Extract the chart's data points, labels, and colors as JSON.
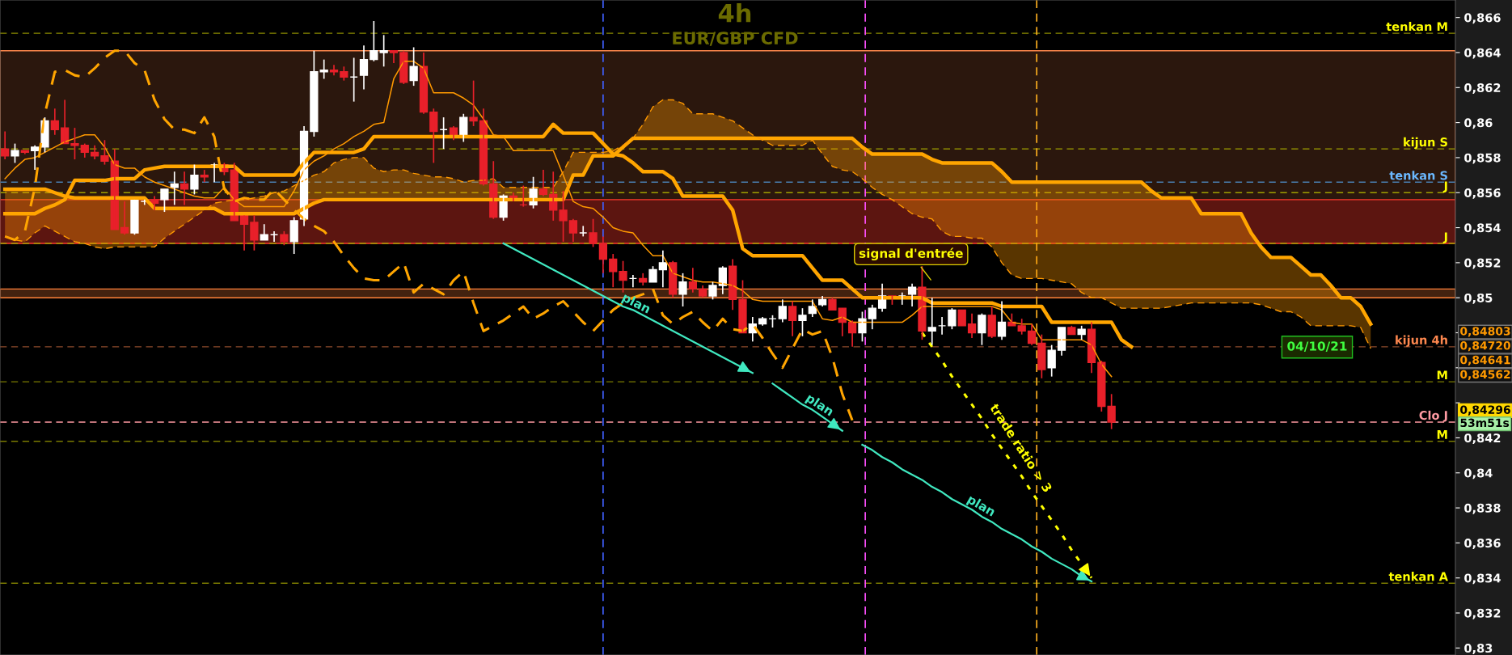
{
  "chart_data": {
    "type": "candlestick",
    "title": "4h",
    "subtitle": "EUR/GBP CFD",
    "categories": [
      null,
      null,
      null,
      null,
      null,
      null,
      null,
      null,
      null,
      null,
      null,
      null,
      null,
      null,
      null,
      null,
      null,
      null,
      null,
      null,
      null,
      null,
      null,
      null,
      null,
      null,
      null,
      null,
      null,
      null,
      null,
      null,
      null,
      null,
      null,
      null,
      null,
      null,
      null,
      null,
      null,
      null,
      null,
      null,
      null,
      null,
      null,
      null,
      null,
      null,
      null,
      null,
      null,
      null,
      null,
      null,
      null,
      null,
      null,
      null,
      null,
      null,
      null,
      null,
      null,
      null,
      null,
      null,
      null,
      null,
      null,
      null,
      null,
      null,
      null,
      null,
      null,
      null,
      null,
      null,
      null,
      null,
      null,
      null,
      null,
      null,
      null,
      null,
      null,
      null,
      null,
      null,
      null,
      null,
      null,
      null,
      null,
      null,
      null,
      null,
      null,
      null,
      null,
      null,
      null,
      null,
      null,
      null,
      null,
      null,
      null,
      null,
      null,
      null,
      null,
      null,
      null,
      null,
      null,
      null,
      null,
      null,
      null,
      null,
      null,
      null,
      null,
      null,
      null,
      null,
      null,
      null,
      null,
      null,
      null,
      null,
      null,
      null,
      null,
      null,
      null,
      null,
      null,
      null,
      null,
      null
    ],
    "ohlc": [
      [
        0.8585,
        0.8595,
        0.8579,
        0.8581
      ],
      [
        0.8581,
        0.8588,
        0.8577,
        0.8584
      ],
      [
        0.8584,
        0.8584,
        0.8582,
        0.8583
      ],
      [
        0.8584,
        0.8587,
        0.8573,
        0.8586
      ],
      [
        0.8586,
        0.8603,
        0.8583,
        0.8601
      ],
      [
        0.8601,
        0.8608,
        0.8593,
        0.8596
      ],
      [
        0.8597,
        0.8613,
        0.8588,
        0.8588
      ],
      [
        0.8588,
        0.8597,
        0.8579,
        0.8587
      ],
      [
        0.8587,
        0.8588,
        0.858,
        0.8583
      ],
      [
        0.8583,
        0.8587,
        0.8579,
        0.8581
      ],
      [
        0.8581,
        0.859,
        0.8576,
        0.8578
      ],
      [
        0.8578,
        0.8585,
        0.8539,
        0.8539
      ],
      [
        0.854,
        0.8555,
        0.8536,
        0.8537
      ],
      [
        0.8537,
        0.8556,
        0.8536,
        0.8556
      ],
      [
        0.8555,
        0.8556,
        0.8553,
        0.8555
      ],
      [
        0.8556,
        0.8558,
        0.855,
        0.8554
      ],
      [
        0.8556,
        0.8562,
        0.8549,
        0.8562
      ],
      [
        0.8563,
        0.8572,
        0.8553,
        0.8565
      ],
      [
        0.8565,
        0.8572,
        0.8553,
        0.8562
      ],
      [
        0.8562,
        0.8576,
        0.8559,
        0.857
      ],
      [
        0.857,
        0.8573,
        0.8566,
        0.8569
      ],
      [
        0.8576,
        0.8577,
        0.8566,
        0.8576
      ],
      [
        0.8576,
        0.8577,
        0.857,
        0.8572
      ],
      [
        0.8573,
        0.8577,
        0.8544,
        0.8544
      ],
      [
        0.8547,
        0.8547,
        0.8527,
        0.8542
      ],
      [
        0.8543,
        0.8547,
        0.8527,
        0.8533
      ],
      [
        0.8533,
        0.8542,
        0.8533,
        0.8536
      ],
      [
        0.8536,
        0.8538,
        0.8532,
        0.8536
      ],
      [
        0.8536,
        0.8538,
        0.853,
        0.8532
      ],
      [
        0.8532,
        0.8546,
        0.8525,
        0.8544
      ],
      [
        0.8545,
        0.8598,
        0.8541,
        0.8595
      ],
      [
        0.8595,
        0.8641,
        0.8592,
        0.8629
      ],
      [
        0.8629,
        0.8636,
        0.8625,
        0.863
      ],
      [
        0.863,
        0.8633,
        0.8627,
        0.8629
      ],
      [
        0.8629,
        0.8632,
        0.8624,
        0.8626
      ],
      [
        0.8626,
        0.8637,
        0.8612,
        0.8626
      ],
      [
        0.8627,
        0.8644,
        0.8619,
        0.8636
      ],
      [
        0.8636,
        0.8658,
        0.8635,
        0.8641
      ],
      [
        0.864,
        0.865,
        0.8632,
        0.8641
      ],
      [
        0.8641,
        0.8641,
        0.8634,
        0.864
      ],
      [
        0.864,
        0.8641,
        0.8622,
        0.8623
      ],
      [
        0.8624,
        0.8643,
        0.8621,
        0.8632
      ],
      [
        0.8632,
        0.864,
        0.8605,
        0.8606
      ],
      [
        0.8606,
        0.8608,
        0.8577,
        0.8595
      ],
      [
        0.8596,
        0.8603,
        0.8585,
        0.8596
      ],
      [
        0.8597,
        0.8598,
        0.859,
        0.8593
      ],
      [
        0.8593,
        0.8605,
        0.8589,
        0.8603
      ],
      [
        0.8603,
        0.8624,
        0.8598,
        0.8601
      ],
      [
        0.8601,
        0.8608,
        0.8564,
        0.8565
      ],
      [
        0.8565,
        0.8578,
        0.8545,
        0.8546
      ],
      [
        0.8546,
        0.8559,
        0.8544,
        0.8558
      ],
      [
        0.8558,
        0.856,
        0.8555,
        0.8557
      ],
      [
        0.8553,
        0.8564,
        0.8552,
        0.8553
      ],
      [
        0.8553,
        0.8569,
        0.8551,
        0.8562
      ],
      [
        0.8562,
        0.8573,
        0.8558,
        0.8559
      ],
      [
        0.8559,
        0.8572,
        0.8544,
        0.855
      ],
      [
        0.855,
        0.8561,
        0.8532,
        0.8544
      ],
      [
        0.8544,
        0.8545,
        0.8532,
        0.8537
      ],
      [
        0.8537,
        0.8541,
        0.8535,
        0.8537
      ],
      [
        0.8537,
        0.8545,
        0.8529,
        0.8531
      ],
      [
        0.8531,
        0.8535,
        0.8514,
        0.8522
      ],
      [
        0.8522,
        0.8525,
        0.8506,
        0.8515
      ],
      [
        0.8515,
        0.8521,
        0.8503,
        0.851
      ],
      [
        0.8511,
        0.8513,
        0.8506,
        0.8511
      ],
      [
        0.8511,
        0.8514,
        0.8507,
        0.8509
      ],
      [
        0.8509,
        0.8518,
        0.8509,
        0.8516
      ],
      [
        0.8516,
        0.8527,
        0.8506,
        0.852
      ],
      [
        0.852,
        0.8521,
        0.85,
        0.8502
      ],
      [
        0.8502,
        0.8514,
        0.8495,
        0.8509
      ],
      [
        0.8509,
        0.8517,
        0.8503,
        0.8505
      ],
      [
        0.8505,
        0.8507,
        0.85,
        0.8501
      ],
      [
        0.8501,
        0.8509,
        0.8499,
        0.8507
      ],
      [
        0.8507,
        0.8518,
        0.8502,
        0.8517
      ],
      [
        0.8518,
        0.8522,
        0.8493,
        0.8499
      ],
      [
        0.8499,
        0.851,
        0.848,
        0.848
      ],
      [
        0.848,
        0.8489,
        0.8475,
        0.8485
      ],
      [
        0.8485,
        0.8489,
        0.8484,
        0.8488
      ],
      [
        0.8488,
        0.849,
        0.8483,
        0.8488
      ],
      [
        0.8488,
        0.8499,
        0.8486,
        0.8495
      ],
      [
        0.8495,
        0.8498,
        0.8478,
        0.8487
      ],
      [
        0.8487,
        0.8494,
        0.8478,
        0.849
      ],
      [
        0.8491,
        0.8499,
        0.8489,
        0.8495
      ],
      [
        0.8496,
        0.8501,
        0.8495,
        0.8499
      ],
      [
        0.8499,
        0.85,
        0.8493,
        0.8493
      ],
      [
        0.8494,
        0.8494,
        0.8478,
        0.8486
      ],
      [
        0.8486,
        0.8487,
        0.8472,
        0.848
      ],
      [
        0.848,
        0.8492,
        0.8475,
        0.8488
      ],
      [
        0.8488,
        0.8496,
        0.8482,
        0.8494
      ],
      [
        0.8494,
        0.8508,
        0.8492,
        0.8501
      ],
      [
        0.8501,
        0.8501,
        0.8496,
        0.85
      ],
      [
        0.8501,
        0.8503,
        0.8496,
        0.8501
      ],
      [
        0.8502,
        0.8508,
        0.8495,
        0.8506
      ],
      [
        0.8506,
        0.8518,
        0.8476,
        0.8481
      ],
      [
        0.8481,
        0.85,
        0.8473,
        0.8483
      ],
      [
        0.8484,
        0.8489,
        0.8479,
        0.8484
      ],
      [
        0.8484,
        0.8494,
        0.8482,
        0.8493
      ],
      [
        0.8493,
        0.8493,
        0.8484,
        0.8484
      ],
      [
        0.8485,
        0.8491,
        0.8477,
        0.848
      ],
      [
        0.848,
        0.8491,
        0.8473,
        0.849
      ],
      [
        0.849,
        0.8495,
        0.8477,
        0.8478
      ],
      [
        0.8478,
        0.8498,
        0.8476,
        0.8486
      ],
      [
        0.8486,
        0.8491,
        0.8484,
        0.8484
      ],
      [
        0.8484,
        0.8488,
        0.8479,
        0.8481
      ],
      [
        0.8481,
        0.8485,
        0.8473,
        0.8474
      ],
      [
        0.8474,
        0.8479,
        0.8454,
        0.8459
      ],
      [
        0.846,
        0.8473,
        0.8455,
        0.847
      ],
      [
        0.847,
        0.8483,
        0.8467,
        0.8483
      ],
      [
        0.8483,
        0.8484,
        0.8479,
        0.8479
      ],
      [
        0.8479,
        0.8484,
        0.8476,
        0.8482
      ],
      [
        0.8482,
        0.8486,
        0.8457,
        0.8463
      ],
      [
        0.8463,
        0.8464,
        0.8435,
        0.8438
      ],
      [
        0.8438,
        0.8445,
        0.8425,
        0.8429
      ],
      null,
      null,
      null,
      null,
      null,
      null,
      null,
      null,
      null,
      null,
      null,
      null,
      null,
      null,
      null,
      null,
      null,
      null,
      null,
      null,
      null,
      null,
      null,
      null,
      null,
      null,
      null,
      null,
      null,
      null,
      null,
      null,
      null,
      null
    ],
    "colors": [
      "#e8202a",
      "#ffffff",
      "#e8202a",
      "#ffffff",
      "#ffffff",
      "#e8202a",
      "#e8202a",
      "#e8202a",
      "#e8202a",
      "#e8202a",
      "#e8202a",
      "#e8202a",
      "#e8202a",
      "#ffffff",
      "#ffffff",
      "#e8202a",
      "#ffffff",
      "#ffffff",
      "#e8202a",
      "#ffffff",
      "#e8202a",
      "#ffffff",
      "#e8202a",
      "#e8202a",
      "#e8202a",
      "#e8202a",
      "#ffffff",
      "#ffffff",
      "#e8202a",
      "#ffffff",
      "#ffffff",
      "#ffffff",
      "#ffffff",
      "#e8202a",
      "#e8202a",
      "#ffffff",
      "#ffffff",
      "#ffffff",
      "#ffffff",
      "#e8202a",
      "#e8202a",
      "#ffffff",
      "#e8202a",
      "#e8202a",
      "#ffffff",
      "#e8202a",
      "#ffffff",
      "#e8202a",
      "#e8202a",
      "#e8202a",
      "#ffffff",
      "#e8202a",
      "#e8202a",
      "#ffffff",
      "#e8202a",
      "#e8202a",
      "#e8202a",
      "#e8202a",
      "#ffffff",
      "#e8202a",
      "#e8202a",
      "#e8202a",
      "#e8202a",
      "#ffffff",
      "#e8202a",
      "#ffffff",
      "#ffffff",
      "#e8202a",
      "#ffffff",
      "#e8202a",
      "#e8202a",
      "#ffffff",
      "#ffffff",
      "#e8202a",
      "#e8202a",
      "#ffffff",
      "#ffffff",
      "#ffffff",
      "#ffffff",
      "#e8202a",
      "#ffffff",
      "#ffffff",
      "#ffffff",
      "#e8202a",
      "#e8202a",
      "#e8202a",
      "#ffffff",
      "#ffffff",
      "#ffffff",
      "#e8202a",
      "#ffffff",
      "#ffffff",
      "#e8202a",
      "#ffffff",
      "#ffffff",
      "#ffffff",
      "#e8202a",
      "#e8202a",
      "#ffffff",
      "#e8202a",
      "#ffffff",
      "#e8202a",
      "#e8202a",
      "#e8202a",
      "#e8202a",
      "#ffffff",
      "#ffffff",
      "#e8202a",
      "#ffffff",
      "#e8202a",
      "#e8202a",
      "#e8202a",
      null,
      null,
      null,
      null,
      null,
      null,
      null,
      null,
      null,
      null,
      null,
      null,
      null,
      null,
      null,
      null,
      null,
      null,
      null,
      null,
      null,
      null,
      null,
      null,
      null,
      null,
      null,
      null,
      null,
      null,
      null,
      null,
      null,
      null
    ],
    "series": [
      {
        "type": "line",
        "color": "#ffa500",
        "values": [
          0.8562,
          0.8562,
          0.8562,
          0.8562,
          0.8562,
          0.856,
          0.8558,
          0.8557,
          0.8557,
          0.8557,
          0.8557,
          0.8557,
          0.8557,
          0.8557,
          0.8557,
          0.8551,
          0.8551,
          0.8551,
          0.8551,
          0.8551,
          0.8551,
          0.8551,
          0.8548,
          0.8548,
          0.8548,
          0.8548,
          0.8548,
          0.8548,
          0.8548,
          0.8548,
          0.8551,
          0.8554,
          0.8556,
          0.8556,
          0.8556,
          0.8556,
          0.8556,
          0.8556,
          0.8556,
          0.8556,
          0.8556,
          0.8556,
          0.8556,
          0.8556,
          0.8556,
          0.8556,
          0.8556,
          0.8556,
          0.8556,
          0.8556,
          0.8556,
          0.8556,
          0.8556,
          0.8556,
          0.8556,
          0.8556,
          0.8556,
          0.857,
          0.857,
          0.8581,
          0.8581,
          0.8581,
          0.8586,
          0.8591,
          0.8591,
          0.8591,
          0.8591,
          0.8591,
          0.8591,
          0.8591,
          0.8591,
          0.8591,
          0.8591,
          0.8591,
          0.8591,
          0.8591,
          0.8591,
          0.8591,
          0.8591,
          0.8591,
          0.8591,
          0.8591,
          0.8591,
          0.8591,
          0.8591,
          0.8591,
          0.8586,
          0.8582,
          0.8582,
          0.8582,
          0.8582,
          0.8582,
          0.8582,
          0.8579,
          0.8577,
          0.8577,
          0.8577,
          0.8577,
          0.8577,
          0.8577,
          0.8572,
          0.8566,
          0.8566,
          0.8566,
          0.8566,
          0.8566,
          0.8566,
          0.8566,
          0.8566,
          0.8566,
          0.8566,
          0.8566,
          0.8566,
          0.8566,
          0.8566,
          0.8561,
          0.8557,
          0.8557,
          0.8557,
          0.8557,
          0.8548,
          0.8548,
          0.8548,
          0.8548,
          0.8548,
          0.8537,
          0.8529,
          0.8523,
          0.8523,
          0.8523,
          0.8518,
          0.8513,
          0.8513,
          0.8507,
          0.85,
          0.85,
          0.8495,
          0.8485,
          null,
          null,
          null,
          null,
          null,
          null,
          null,
          null
        ]
      },
      {
        "type": "line",
        "color": "#ffa500",
        "values": [
          0.8548,
          0.8548,
          0.8548,
          0.8548,
          0.8551,
          0.8553,
          0.8556,
          0.8567,
          0.8567,
          0.8567,
          0.8567,
          0.8568,
          0.8568,
          0.8568,
          0.8573,
          0.8574,
          0.8575,
          0.8575,
          0.8575,
          0.8575,
          0.8575,
          0.8575,
          0.8575,
          0.8575,
          0.857,
          0.857,
          0.857,
          0.857,
          0.857,
          0.857,
          0.8577,
          0.8583,
          0.8583,
          0.8583,
          0.8583,
          0.8583,
          0.8585,
          0.8592,
          0.8592,
          0.8592,
          0.8592,
          0.8592,
          0.8592,
          0.8592,
          0.8592,
          0.8592,
          0.8592,
          0.8592,
          0.8592,
          0.8592,
          0.8592,
          0.8592,
          0.8592,
          0.8592,
          0.8592,
          0.8599,
          0.8594,
          0.8594,
          0.8594,
          0.8594,
          0.8588,
          0.8582,
          0.8581,
          0.8577,
          0.8572,
          0.8572,
          0.8572,
          0.8568,
          0.8558,
          0.8558,
          0.8558,
          0.8558,
          0.8558,
          0.855,
          0.8528,
          0.8524,
          0.8524,
          0.8524,
          0.8524,
          0.8524,
          0.8524,
          0.8517,
          0.851,
          0.851,
          0.851,
          0.8505,
          0.85,
          0.85,
          0.85,
          0.85,
          0.85,
          0.85,
          0.85,
          0.8497,
          0.8497,
          0.8497,
          0.8497,
          0.8497,
          0.8497,
          0.8497,
          0.8495,
          0.8495,
          0.8495,
          0.8495,
          0.8495,
          0.8486,
          0.8486,
          0.8486,
          0.8486,
          0.8486,
          0.8486,
          0.8486,
          0.8476,
          0.8472,
          null,
          null,
          null,
          null,
          null,
          null,
          null,
          null,
          null,
          null,
          null,
          null,
          null,
          null,
          null,
          null,
          null,
          null,
          null,
          null,
          null,
          null,
          null,
          null,
          null,
          null,
          null,
          null,
          null,
          null,
          null,
          null
        ]
      },
      {
        "type": "line",
        "color": "#ff9900",
        "values": [
          0.8568,
          0.8574,
          0.8579,
          0.858,
          0.8583,
          0.8586,
          0.8589,
          0.8591,
          0.8593,
          0.8593,
          0.8586,
          0.8576,
          0.8574,
          0.8574,
          0.8569,
          0.8566,
          0.8564,
          0.8562,
          0.856,
          0.8558,
          0.8557,
          0.8557,
          0.8563,
          0.8556,
          0.8552,
          0.8552,
          0.8552,
          0.8552,
          0.8552,
          0.8561,
          0.8573,
          0.8578,
          0.8581,
          0.8585,
          0.8588,
          0.8592,
          0.8595,
          0.8599,
          0.86,
          0.8625,
          0.8635,
          0.8635,
          0.8631,
          0.8617,
          0.8617,
          0.8617,
          0.8614,
          0.861,
          0.8602,
          0.8593,
          0.8592,
          0.8584,
          0.8584,
          0.8584,
          0.8584,
          0.8584,
          0.857,
          0.8555,
          0.8552,
          0.8551,
          0.8546,
          0.854,
          0.8538,
          0.8537,
          0.853,
          0.8524,
          0.8524,
          0.8514,
          0.8512,
          0.851,
          0.8509,
          0.8509,
          0.8508,
          0.8507,
          0.8504,
          0.8499,
          0.8498,
          0.8498,
          0.8498,
          0.8498,
          0.8498,
          0.8498,
          0.8488,
          0.8487,
          0.8489,
          0.8486,
          0.8486,
          0.8486,
          0.8486,
          0.8486,
          0.8486,
          0.849,
          0.8495,
          0.8495,
          0.8495,
          0.8495,
          0.8495,
          0.8495,
          0.8495,
          0.8495,
          0.8493,
          0.8486,
          0.8485,
          0.8485,
          0.8476,
          0.8476,
          0.8476,
          0.8476,
          0.8476,
          0.8473,
          0.8462,
          0.8455,
          null,
          null,
          null,
          null,
          null,
          null,
          null,
          null,
          null,
          null,
          null,
          null,
          null,
          null,
          null,
          null,
          null,
          null,
          null,
          null,
          null,
          null,
          null,
          null,
          null,
          null,
          null,
          null,
          null,
          null,
          null,
          null,
          null,
          null
        ]
      },
      {
        "type": "line",
        "color": "#ffa500",
        "line_style": "dashed",
        "values": [
          0.8535,
          0.8533,
          0.8538,
          0.8563,
          0.8605,
          0.8629,
          0.863,
          0.8627,
          0.8626,
          0.8631,
          0.8637,
          0.8641,
          0.8641,
          0.8634,
          0.863,
          0.8613,
          0.8602,
          0.8596,
          0.8596,
          0.8594,
          0.8603,
          0.8592,
          0.8562,
          0.8555,
          0.8557,
          0.8556,
          0.8556,
          0.8562,
          0.8556,
          0.855,
          0.8545,
          0.8541,
          0.8538,
          0.8532,
          0.8524,
          0.8517,
          0.8511,
          0.851,
          0.851,
          0.8515,
          0.852,
          0.8503,
          0.8508,
          0.8505,
          0.8502,
          0.851,
          0.8515,
          0.8497,
          0.8481,
          0.8484,
          0.8487,
          0.8491,
          0.8495,
          0.8488,
          0.8491,
          0.8495,
          0.8498,
          0.8492,
          0.8486,
          0.8481,
          0.8487,
          0.8493,
          0.8497,
          0.85,
          0.8502,
          0.8505,
          0.849,
          0.8485,
          0.8489,
          0.8492,
          0.8486,
          0.8481,
          0.8488,
          0.8482,
          0.8481,
          0.8485,
          0.8477,
          0.8468,
          0.846,
          0.8471,
          0.8482,
          0.8479,
          0.8481,
          0.8466,
          0.8445,
          0.843,
          null,
          null,
          null,
          null,
          null,
          null,
          null,
          null,
          null,
          null,
          null,
          null,
          null,
          null,
          null,
          null,
          null,
          null,
          null,
          null,
          null,
          null,
          null,
          null,
          null,
          null,
          null,
          null,
          null,
          null,
          null,
          null,
          null,
          null,
          null,
          null,
          null,
          null,
          null,
          null,
          null,
          null,
          null,
          null,
          null,
          null,
          null,
          null,
          null,
          null,
          null,
          null,
          null,
          null,
          null,
          null,
          null,
          null,
          null,
          null
        ]
      },
      {
        "type": "line",
        "color": "#ff9900",
        "line_style": "dashed",
        "values": [
          0.8535,
          0.8533,
          0.8532,
          0.8537,
          0.8541,
          0.8538,
          0.8535,
          0.8532,
          0.8531,
          0.8529,
          0.8528,
          0.8529,
          0.8529,
          0.8529,
          0.8529,
          0.8529,
          0.8534,
          0.8538,
          0.8542,
          0.8546,
          0.855,
          0.8554,
          0.8555,
          0.8556,
          0.8556,
          0.8557,
          0.8558,
          0.856,
          0.8561,
          0.8564,
          0.8567,
          0.857,
          0.8572,
          0.8577,
          0.8579,
          0.858,
          0.858,
          0.8574,
          0.8572,
          0.8573,
          0.8573,
          0.8571,
          0.857,
          0.8569,
          0.8569,
          0.8568,
          0.8566,
          0.8567,
          0.8567,
          0.8568,
          0.8563,
          0.8563,
          0.8563,
          0.8563,
          0.8563,
          0.8563,
          0.8572,
          0.8583,
          0.8583,
          0.8583,
          0.8583,
          0.8584,
          0.8587,
          0.8591,
          0.8599,
          0.8609,
          0.8613,
          0.8613,
          0.8611,
          0.8605,
          0.8605,
          0.8605,
          0.8603,
          0.8601,
          0.8597,
          0.8593,
          0.859,
          0.8587,
          0.8587,
          0.8587,
          0.8587,
          0.859,
          0.8582,
          0.8575,
          0.8573,
          0.8572,
          0.8568,
          0.8563,
          0.8559,
          0.8556,
          0.8552,
          0.8548,
          0.8546,
          0.8545,
          0.8538,
          0.8535,
          0.8535,
          0.8534,
          0.8534,
          0.8529,
          0.852,
          0.8513,
          0.8511,
          0.8511,
          0.8511,
          0.851,
          0.8509,
          0.8508,
          0.8503,
          0.85,
          0.85,
          0.8497,
          0.8494,
          0.8494,
          0.8494,
          0.8494,
          0.8494,
          0.8495,
          0.8496,
          0.8497,
          0.8497,
          0.8497,
          0.8497,
          0.8497,
          0.8497,
          0.8497,
          0.8496,
          0.8494,
          0.8492,
          0.8492,
          0.8489,
          0.8484,
          0.8484,
          0.8484,
          0.8484,
          0.8484,
          0.8483,
          0.8471,
          null,
          null,
          null,
          null,
          null,
          null,
          null,
          null
        ]
      },
      {
        "type": "line",
        "color": "#40e8c0",
        "values": [
          null,
          null,
          null,
          null,
          null,
          null,
          null,
          null,
          null,
          null,
          null,
          null,
          null,
          null,
          null,
          null,
          null,
          null,
          null,
          null,
          null,
          null,
          null,
          null,
          null,
          null,
          null,
          null,
          null,
          null,
          null,
          null,
          null,
          null,
          null,
          null,
          null,
          null,
          null,
          null,
          null,
          null,
          null,
          null,
          null,
          null,
          null,
          null,
          null,
          null,
          0.8531,
          0.8528,
          0.8525,
          0.8522,
          0.8519,
          0.8516,
          0.8513,
          0.851,
          0.8507,
          0.8504,
          0.8501,
          0.8498,
          0.8495,
          0.8493,
          0.849,
          0.8487,
          0.8484,
          0.8481,
          0.8478,
          0.8475,
          0.8472,
          0.8469,
          0.8466,
          0.8463,
          0.846,
          0.8457,
          null,
          0.8451,
          0.8447,
          0.8443,
          0.8439,
          0.8436,
          0.8432,
          0.8428,
          0.8424,
          null,
          0.8416,
          0.8413,
          0.8409,
          0.8406,
          0.8402,
          0.8399,
          0.8396,
          0.8392,
          0.8389,
          0.8385,
          0.8382,
          0.8379,
          0.8375,
          0.8372,
          0.8368,
          0.8365,
          0.8362,
          0.8358,
          0.8355,
          0.8351,
          0.8348,
          0.8345,
          0.8341,
          0.8338,
          null,
          null,
          null,
          null,
          null,
          null,
          null,
          null,
          null,
          null,
          null,
          null,
          null,
          null,
          null,
          null,
          null,
          null,
          null,
          null,
          null,
          null,
          null,
          null,
          null,
          null,
          null,
          null,
          null,
          null,
          null,
          null,
          null,
          null,
          null,
          null
        ]
      },
      {
        "type": "line",
        "color": "#ffff00",
        "line_style": "dotted",
        "values": [
          null,
          null,
          null,
          null,
          null,
          null,
          null,
          null,
          null,
          null,
          null,
          null,
          null,
          null,
          null,
          null,
          null,
          null,
          null,
          null,
          null,
          null,
          null,
          null,
          null,
          null,
          null,
          null,
          null,
          null,
          null,
          null,
          null,
          null,
          null,
          null,
          null,
          null,
          null,
          null,
          null,
          null,
          null,
          null,
          null,
          null,
          null,
          null,
          null,
          null,
          null,
          null,
          null,
          null,
          null,
          null,
          null,
          null,
          null,
          null,
          null,
          null,
          null,
          null,
          null,
          null,
          null,
          null,
          null,
          null,
          null,
          null,
          null,
          null,
          null,
          null,
          null,
          null,
          null,
          null,
          null,
          null,
          null,
          null,
          null,
          null,
          null,
          null,
          null,
          null,
          null,
          null,
          0.848,
          0.8472,
          0.8464,
          0.8455,
          0.8447,
          0.8439,
          0.8431,
          0.8422,
          0.8414,
          0.8406,
          0.8398,
          0.8389,
          0.8381,
          0.8373,
          0.8365,
          0.8356,
          0.8348,
          0.834,
          null,
          null,
          null,
          null,
          null,
          null,
          null,
          null,
          null,
          null,
          null,
          null,
          null,
          null,
          null,
          null,
          null,
          null,
          null,
          null,
          null,
          null,
          null,
          null,
          null,
          null,
          null,
          null,
          null,
          null,
          null,
          null,
          null,
          null,
          null,
          null
        ]
      }
    ],
    "ylim": [
      0.8296,
      0.867
    ],
    "yticks": [
      {
        "value": 0.83,
        "label": "0,83"
      },
      {
        "value": 0.832,
        "label": "0,832"
      },
      {
        "value": 0.834,
        "label": "0,834"
      },
      {
        "value": 0.836,
        "label": "0,836"
      },
      {
        "value": 0.838,
        "label": "0,838"
      },
      {
        "value": 0.84,
        "label": "0,84"
      },
      {
        "value": 0.842,
        "label": "0,842"
      },
      {
        "value": 0.844,
        "label": null
      },
      {
        "value": 0.846,
        "label": null
      },
      {
        "value": 0.848,
        "label": null
      },
      {
        "value": 0.85,
        "label": "0,85"
      },
      {
        "value": 0.852,
        "label": "0,852"
      },
      {
        "value": 0.854,
        "label": "0,854"
      },
      {
        "value": 0.856,
        "label": "0,856"
      },
      {
        "value": 0.858,
        "label": "0,858"
      },
      {
        "value": 0.86,
        "label": "0,86"
      },
      {
        "value": 0.862,
        "label": "0,862"
      },
      {
        "value": 0.864,
        "label": "0,864"
      },
      {
        "value": 0.866,
        "label": "0,866"
      }
    ],
    "tick_labels": "y",
    "bands": [
      {
        "axis": "y",
        "from": 0.8532,
        "to": 0.8641,
        "color": "#2b170d"
      },
      {
        "axis": "y",
        "from": 0.8531,
        "to": 0.8556,
        "color": "#5c1510"
      },
      {
        "axis": "y",
        "from": 0.85,
        "to": 0.8505,
        "color": "#43220f"
      }
    ],
    "ref_lines": [
      {
        "axis": "y",
        "value": 0.8651,
        "label": "tenkan M",
        "color": "#8a8a00",
        "line_style": "dashed"
      },
      {
        "axis": "y",
        "value": 0.8585,
        "label": "kijun S",
        "color": "#a0a000",
        "line_style": "dashed"
      },
      {
        "axis": "y",
        "value": 0.8566,
        "label": "tenkan S",
        "color": "#4a7fb0",
        "line_style": "dashed"
      },
      {
        "axis": "y",
        "value": 0.856,
        "label": "J",
        "color": "#a0a000",
        "line_style": "dashed"
      },
      {
        "axis": "y",
        "value": 0.8531,
        "label": "J",
        "color": "#a0a000",
        "line_style": "dashed"
      },
      {
        "axis": "y",
        "value": 0.8472,
        "label": "kijun 4h",
        "color": "#8b4a2b",
        "line_style": "dashed"
      },
      {
        "axis": "y",
        "value": 0.8452,
        "label": "M",
        "color": "#7a7a00",
        "line_style": "dashed"
      },
      {
        "axis": "y",
        "value": 0.8429,
        "label": "Clo J",
        "color": "#ff9aa2",
        "line_style": "dashed"
      },
      {
        "axis": "y",
        "value": 0.8418,
        "label": "M",
        "color": "#7a7a00",
        "line_style": "dashed"
      },
      {
        "axis": "y",
        "value": 0.8337,
        "label": "tenkan A",
        "color": "#7a7a00",
        "line_style": "dashed"
      }
    ],
    "annotations": [
      "signal d'entrée",
      "plan",
      "plan",
      "plan",
      "trade ratio > 3",
      "04/10/21",
      "0,84803",
      "0,84720",
      "0,84641",
      "0,84562",
      "0,84296",
      "53m51s"
    ]
  }
}
